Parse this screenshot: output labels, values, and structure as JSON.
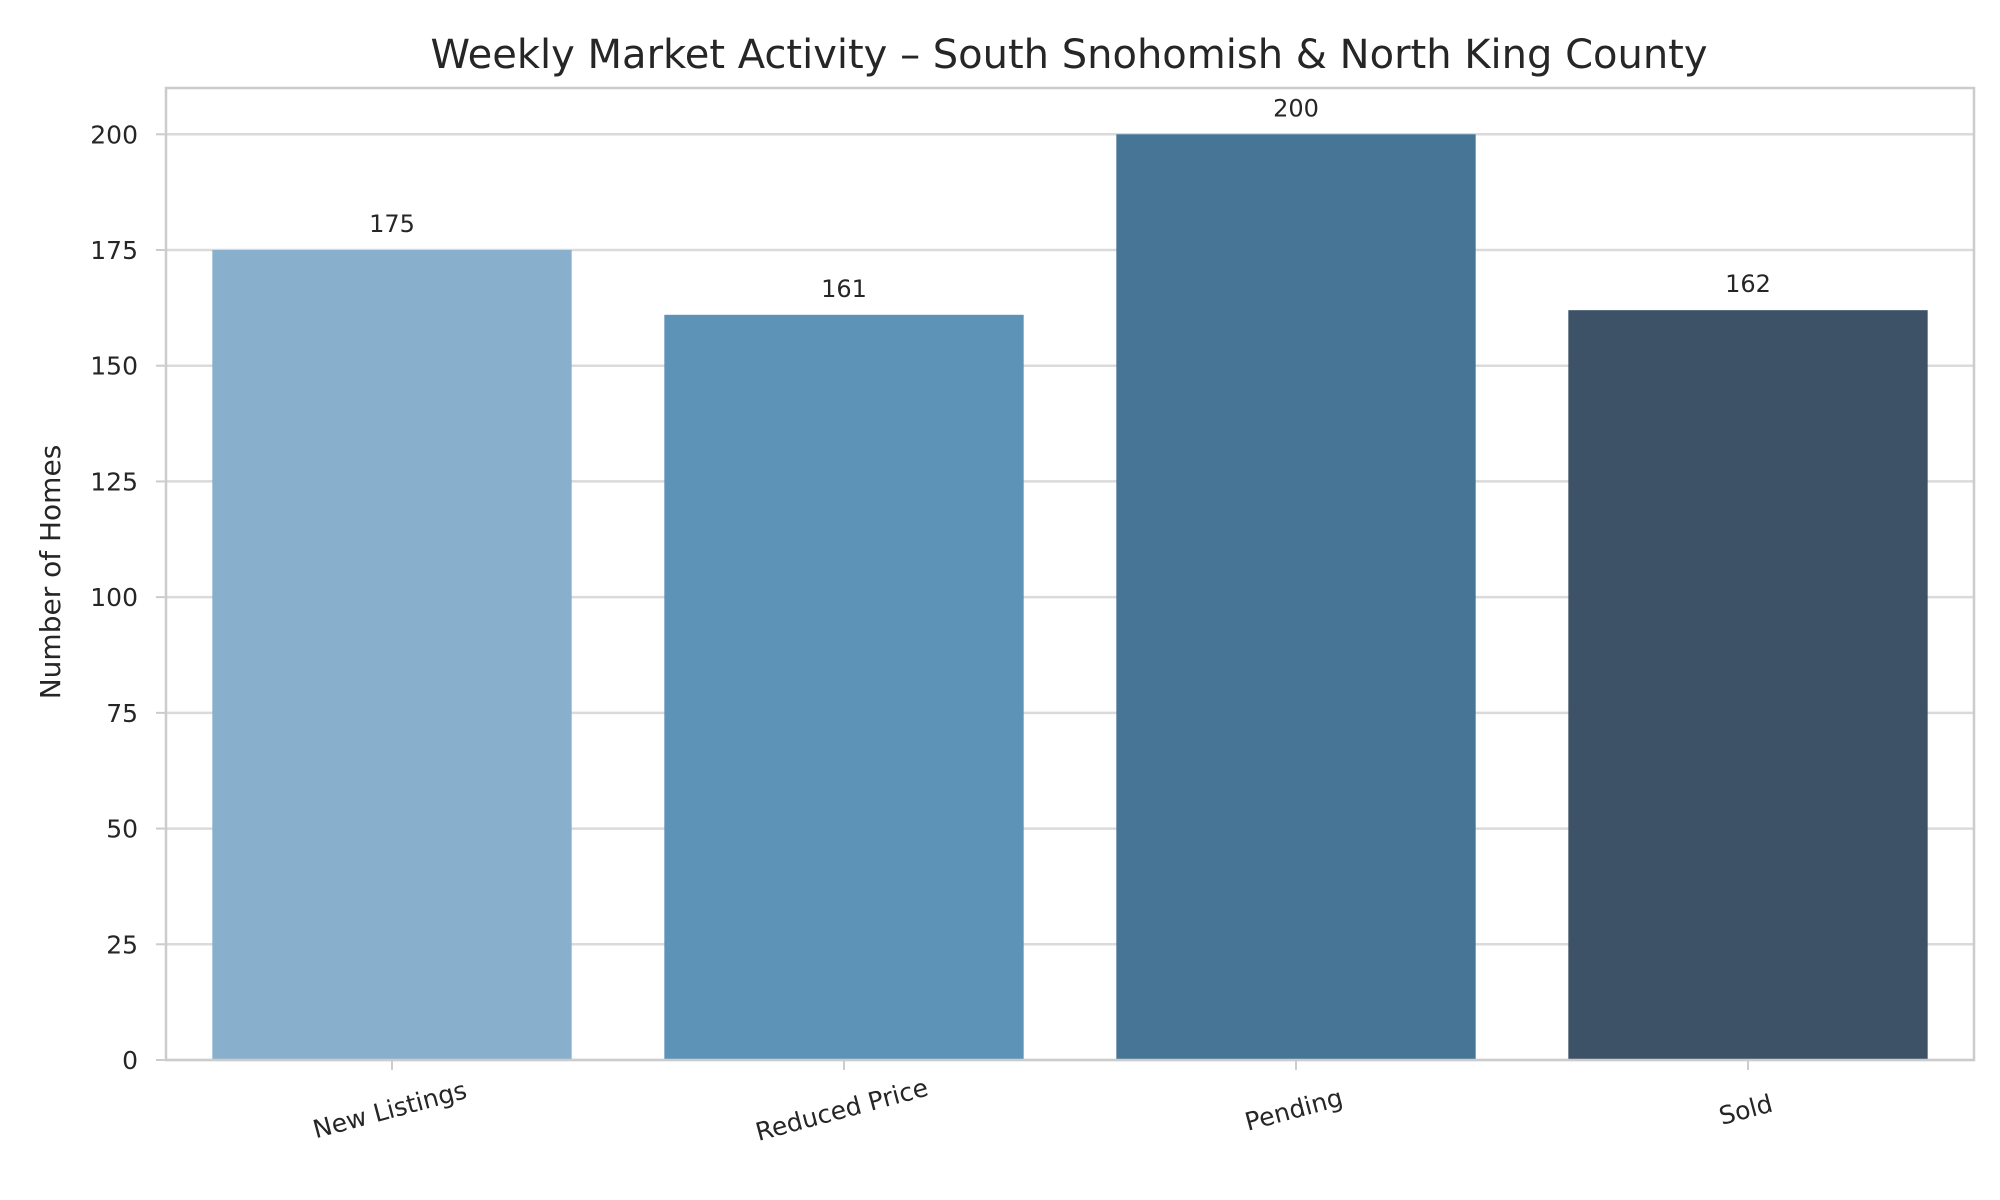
{
  "chart_data": {
    "type": "bar",
    "title": "Weekly Market Activity – South Snohomish & North King County",
    "xlabel": "",
    "ylabel": "Number of Homes",
    "categories": [
      "New Listings",
      "Reduced Price",
      "Pending",
      "Sold"
    ],
    "values": [
      175,
      161,
      200,
      162
    ],
    "data_labels": [
      "175",
      "161",
      "200",
      "162"
    ],
    "colors": [
      "#88afcb",
      "#5e93b8",
      "#467596",
      "#3d5266"
    ],
    "ylim": [
      0,
      210
    ],
    "yticks": [
      0,
      25,
      50,
      75,
      100,
      125,
      150,
      175,
      200
    ],
    "ytick_labels": [
      "0",
      "25",
      "50",
      "75",
      "100",
      "125",
      "150",
      "175",
      "200"
    ],
    "grid": true,
    "legend": "none"
  }
}
